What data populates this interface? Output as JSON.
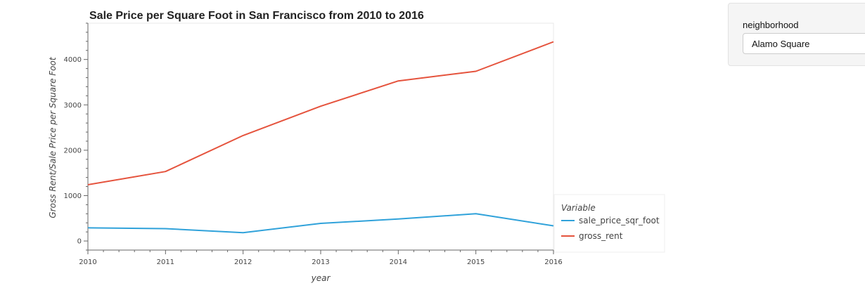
{
  "chart_data": {
    "type": "line",
    "title": "Sale Price per Square Foot in San Francisco from 2010 to 2016",
    "xlabel": "year",
    "ylabel": "Gross Rent/Sale Price per Square Foot",
    "x": [
      2010,
      2011,
      2012,
      2013,
      2014,
      2015,
      2016
    ],
    "xlim": [
      2010,
      2016
    ],
    "ylim": [
      -200,
      4800
    ],
    "x_ticks": [
      "2010",
      "2011",
      "2012",
      "2013",
      "2014",
      "2015",
      "2016"
    ],
    "y_ticks": [
      "0",
      "1000",
      "2000",
      "3000",
      "4000"
    ],
    "grid": false,
    "legend_title": "Variable",
    "legend_position": "right-bottom",
    "series": [
      {
        "name": "sale_price_sqr_foot",
        "color": "#30a2da",
        "values": [
          291,
          272,
          183,
          388,
          484,
          602,
          334
        ]
      },
      {
        "name": "gross_rent",
        "color": "#e5533d",
        "values": [
          1239,
          1530,
          2324,
          2971,
          3528,
          3739,
          4390
        ]
      }
    ]
  },
  "widget": {
    "label": "neighborhood",
    "selected": "Alamo Square"
  }
}
